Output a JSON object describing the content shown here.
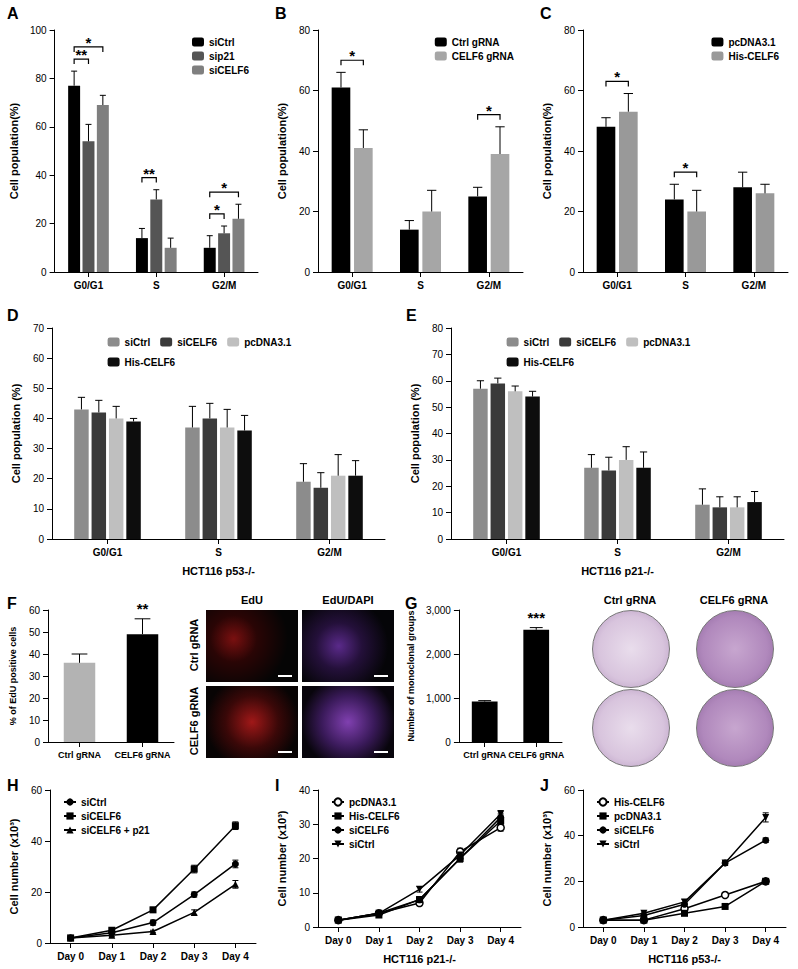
{
  "chart_data": [
    {
      "title": "A",
      "type": "bar",
      "ylabel": "Cell population(%)",
      "categories": [
        "G0/G1",
        "S",
        "G2/M"
      ],
      "ylim": [
        0,
        100
      ],
      "yticks": [
        0,
        20,
        40,
        60,
        80,
        100
      ],
      "grid": false,
      "legend": "top-right",
      "series": [
        {
          "name": "siCtrl",
          "color": "#000000",
          "values": [
            77,
            14,
            10
          ],
          "errors": [
            6,
            4,
            5
          ]
        },
        {
          "name": "sip21",
          "color": "#555555",
          "values": [
            54,
            30,
            16
          ],
          "errors": [
            7,
            4,
            3
          ]
        },
        {
          "name": "siCELF6",
          "color": "#7f7f7f",
          "values": [
            69,
            10,
            22
          ],
          "errors": [
            4,
            4,
            6
          ]
        }
      ],
      "annotations": [
        {
          "text": "**",
          "category": "G0/G1",
          "between": [
            "siCtrl",
            "sip21"
          ]
        },
        {
          "text": "*",
          "category": "G0/G1",
          "between": [
            "siCtrl",
            "siCELF6"
          ]
        },
        {
          "text": "**",
          "category": "S",
          "between": [
            "siCtrl",
            "sip21"
          ]
        },
        {
          "text": "*",
          "category": "G2/M",
          "between": [
            "siCtrl",
            "sip21"
          ]
        },
        {
          "text": "*",
          "category": "G2/M",
          "between": [
            "siCtrl",
            "siCELF6"
          ]
        }
      ]
    },
    {
      "title": "B",
      "type": "bar",
      "ylabel": "Cell population(%)",
      "categories": [
        "G0/G1",
        "S",
        "G2/M"
      ],
      "ylim": [
        0,
        80
      ],
      "yticks": [
        0,
        20,
        40,
        60,
        80
      ],
      "grid": false,
      "legend": "top-right",
      "series": [
        {
          "name": "Ctrl gRNA",
          "color": "#000000",
          "values": [
            61,
            14,
            25
          ],
          "errors": [
            5,
            3,
            3
          ]
        },
        {
          "name": "CELF6 gRNA",
          "color": "#a6a6a6",
          "values": [
            41,
            20,
            39
          ],
          "errors": [
            6,
            7,
            9
          ]
        }
      ],
      "annotations": [
        {
          "text": "*",
          "category": "G0/G1",
          "between": [
            "Ctrl gRNA",
            "CELF6 gRNA"
          ]
        },
        {
          "text": "*",
          "category": "G2/M",
          "between": [
            "Ctrl gRNA",
            "CELF6 gRNA"
          ]
        }
      ]
    },
    {
      "title": "C",
      "type": "bar",
      "ylabel": "Cell population(%)",
      "categories": [
        "G0/G1",
        "S",
        "G2/M"
      ],
      "ylim": [
        0,
        80
      ],
      "yticks": [
        0,
        20,
        40,
        60,
        80
      ],
      "grid": false,
      "legend": "top-right",
      "series": [
        {
          "name": "pcDNA3.1",
          "color": "#000000",
          "values": [
            48,
            24,
            28
          ],
          "errors": [
            3,
            5,
            5
          ]
        },
        {
          "name": "His-CELF6",
          "color": "#999999",
          "values": [
            53,
            20,
            26
          ],
          "errors": [
            6,
            7,
            3
          ]
        }
      ],
      "annotations": [
        {
          "text": "*",
          "category": "G0/G1",
          "between": [
            "pcDNA3.1",
            "His-CELF6"
          ]
        },
        {
          "text": "*",
          "category": "S",
          "between": [
            "pcDNA3.1",
            "His-CELF6"
          ]
        }
      ]
    },
    {
      "title": "D",
      "type": "bar",
      "ylabel": "Cell population (%)",
      "xlabel": "HCT116 p53-/-",
      "categories": [
        "G0/G1",
        "S",
        "G2/M"
      ],
      "ylim": [
        0,
        70
      ],
      "yticks": [
        0,
        10,
        20,
        30,
        40,
        50,
        60,
        70
      ],
      "grid": false,
      "legend": "top",
      "series": [
        {
          "name": "siCtrl",
          "color": "#8c8c8c",
          "values": [
            43,
            37,
            19
          ],
          "errors": [
            4,
            7,
            6
          ]
        },
        {
          "name": "siCELF6",
          "color": "#3a3a3a",
          "values": [
            42,
            40,
            17
          ],
          "errors": [
            4,
            5,
            5
          ]
        },
        {
          "name": "pcDNA3.1",
          "color": "#bfbfbf",
          "values": [
            40,
            37,
            21
          ],
          "errors": [
            4,
            6,
            7
          ]
        },
        {
          "name": "His-CELF6",
          "color": "#0d0d0d",
          "values": [
            39,
            36,
            21
          ],
          "errors": [
            1,
            5,
            5
          ]
        }
      ]
    },
    {
      "title": "E",
      "type": "bar",
      "ylabel": "Cell population (%)",
      "xlabel": "HCT116 p21-/-",
      "categories": [
        "G0/G1",
        "S",
        "G2/M"
      ],
      "ylim": [
        0,
        80
      ],
      "yticks": [
        0,
        10,
        20,
        30,
        40,
        50,
        60,
        70,
        80
      ],
      "grid": false,
      "legend": "top",
      "series": [
        {
          "name": "siCtrl",
          "color": "#8c8c8c",
          "values": [
            57,
            27,
            13
          ],
          "errors": [
            3,
            5,
            6
          ]
        },
        {
          "name": "siCELF6",
          "color": "#3a3a3a",
          "values": [
            59,
            26,
            12
          ],
          "errors": [
            2,
            5,
            4
          ]
        },
        {
          "name": "pcDNA3.1",
          "color": "#bfbfbf",
          "values": [
            56,
            30,
            12
          ],
          "errors": [
            2,
            5,
            4
          ]
        },
        {
          "name": "His-CELF6",
          "color": "#0d0d0d",
          "values": [
            54,
            27,
            14
          ],
          "errors": [
            2,
            6,
            4
          ]
        }
      ]
    },
    {
      "title": "F",
      "type": "bar",
      "ylabel": "% of EdU positive cells",
      "categories": [
        "Ctrl gRNA",
        "CELF6 gRNA"
      ],
      "ylim": [
        0,
        60
      ],
      "yticks": [
        0,
        10,
        20,
        30,
        40,
        50,
        60
      ],
      "grid": false,
      "values": [
        36,
        49
      ],
      "errors": [
        4,
        7
      ],
      "colors": [
        "#b3b3b3",
        "#000000"
      ],
      "annotations": [
        {
          "text": "**",
          "category": "CELF6 gRNA"
        }
      ],
      "images": {
        "columns": [
          "EdU",
          "EdU/DAPI"
        ],
        "rows": [
          "Ctrl gRNA",
          "CELF6 gRNA"
        ]
      }
    },
    {
      "title": "G",
      "type": "bar",
      "ylabel": "Number of monoclonal groups",
      "categories": [
        "Ctrl gRNA",
        "CELF6 gRNA"
      ],
      "ylim": [
        0,
        3000
      ],
      "yticks": [
        0,
        1000,
        2000,
        3000
      ],
      "grid": false,
      "values": [
        920,
        2550
      ],
      "errors": [
        20,
        50
      ],
      "colors": [
        "#000000",
        "#000000"
      ],
      "annotations": [
        {
          "text": "***",
          "category": "CELF6 gRNA"
        }
      ],
      "images": {
        "columns": [
          "Ctrl gRNA",
          "CELF6 gRNA"
        ]
      }
    },
    {
      "title": "H",
      "type": "line",
      "ylabel": "Cell number (x10³)",
      "categories": [
        "Day 0",
        "Day 1",
        "Day 2",
        "Day 3",
        "Day 4"
      ],
      "ylim": [
        0,
        60
      ],
      "yticks": [
        0,
        20,
        40,
        60
      ],
      "grid": false,
      "legend": "top-left",
      "series": [
        {
          "name": "siCtrl",
          "color": "#000000",
          "marker": "circle",
          "values": [
            2,
            4,
            8,
            19,
            31
          ],
          "errors": [
            0.3,
            0.5,
            1,
            1,
            1.5
          ]
        },
        {
          "name": "siCELF6",
          "color": "#000000",
          "marker": "square",
          "values": [
            2,
            5,
            13,
            29,
            46
          ],
          "errors": [
            0.3,
            0.5,
            1,
            1.5,
            1.5
          ]
        },
        {
          "name": "siCELF6 + p21",
          "color": "#000000",
          "marker": "triangle",
          "values": [
            2,
            3,
            4.5,
            12,
            23
          ],
          "errors": [
            0.3,
            0.5,
            0.5,
            1,
            1.5
          ]
        }
      ]
    },
    {
      "title": "I",
      "type": "line",
      "ylabel": "Cell number (x10³)",
      "xlabel": "HCT116 p21-/-",
      "categories": [
        "Day 0",
        "Day 1",
        "Day 2",
        "Day 3",
        "Day 4"
      ],
      "ylim": [
        0,
        40
      ],
      "yticks": [
        0,
        10,
        20,
        30,
        40
      ],
      "grid": false,
      "legend": "top-left",
      "series": [
        {
          "name": "pcDNA3.1",
          "color": "#000000",
          "marker": "circle-open",
          "values": [
            2,
            4,
            7,
            22,
            29
          ],
          "errors": [
            0.2,
            0.5,
            0.8,
            1,
            1
          ]
        },
        {
          "name": "His-CELF6",
          "color": "#000000",
          "marker": "square",
          "values": [
            2,
            3.5,
            8,
            20,
            31
          ],
          "errors": [
            0.2,
            0.5,
            0.8,
            1,
            1
          ]
        },
        {
          "name": "siCELF6",
          "color": "#000000",
          "marker": "circle",
          "values": [
            2,
            4,
            8,
            20,
            32
          ],
          "errors": [
            0.2,
            0.5,
            0.8,
            1,
            1
          ]
        },
        {
          "name": "siCtrl",
          "color": "#000000",
          "marker": "triangle-down",
          "values": [
            2,
            4,
            11,
            21,
            33
          ],
          "errors": [
            0.2,
            0.5,
            0.8,
            1,
            1
          ]
        }
      ]
    },
    {
      "title": "J",
      "type": "line",
      "ylabel": "Cell number (x10³)",
      "xlabel": "HCT116 p53-/-",
      "categories": [
        "Day 0",
        "Day 1",
        "Day 2",
        "Day 3",
        "Day 4"
      ],
      "ylim": [
        0,
        60
      ],
      "yticks": [
        0,
        20,
        40,
        60
      ],
      "grid": false,
      "legend": "top-left",
      "series": [
        {
          "name": "His-CELF6",
          "color": "#000000",
          "marker": "circle-open",
          "values": [
            3,
            3,
            8,
            14,
            20
          ],
          "errors": [
            0.2,
            0.5,
            0.5,
            1,
            1
          ]
        },
        {
          "name": "pcDNA3.1",
          "color": "#000000",
          "marker": "square",
          "values": [
            3,
            3,
            6,
            9,
            20
          ],
          "errors": [
            0.2,
            0.5,
            0.5,
            0.5,
            1
          ]
        },
        {
          "name": "siCELF6",
          "color": "#000000",
          "marker": "circle",
          "values": [
            3,
            5,
            10,
            28,
            38
          ],
          "errors": [
            0.2,
            0.5,
            0.5,
            1,
            1
          ]
        },
        {
          "name": "siCtrl",
          "color": "#000000",
          "marker": "triangle-down",
          "values": [
            3,
            6,
            11,
            28,
            48
          ],
          "errors": [
            0.2,
            0.5,
            1,
            1,
            2
          ]
        }
      ]
    }
  ]
}
